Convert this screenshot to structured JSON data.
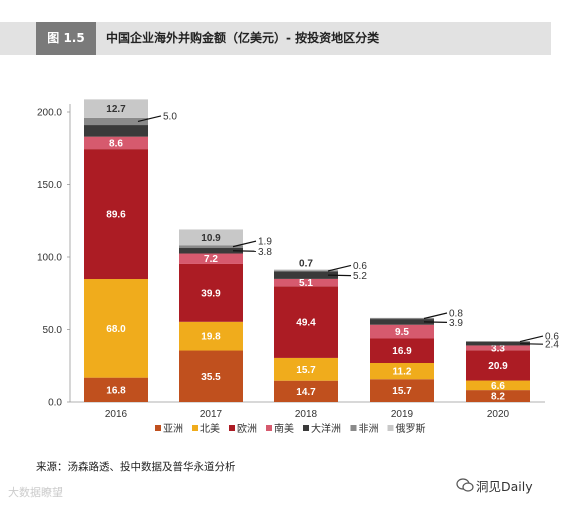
{
  "header": {
    "figure_label": "图 1.5",
    "title": "中国企业海外并购金额（亿美元）- 按投资地区分类"
  },
  "source_note": "来源：汤森路透、投中数据及普华永道分析",
  "watermark_left": "大数据瞭望",
  "watermark_right": "洞见Daily",
  "chart_data": {
    "type": "bar",
    "stacked": true,
    "categories": [
      "2016",
      "2017",
      "2018",
      "2019",
      "2020"
    ],
    "ylim": [
      0,
      210
    ],
    "yticks": [
      0,
      50,
      100,
      150,
      200
    ],
    "ytick_labels": [
      "0.0",
      "50.0",
      "100.0",
      "150.0",
      "200.0"
    ],
    "grid": false,
    "legend_position": "bottom",
    "series": [
      {
        "name": "亚洲",
        "color": "#c0501e",
        "values": [
          16.8,
          35.5,
          14.7,
          15.7,
          8.2
        ]
      },
      {
        "name": "北美",
        "color": "#f0ac1c",
        "values": [
          68.0,
          19.8,
          15.7,
          11.2,
          6.6
        ]
      },
      {
        "name": "欧洲",
        "color": "#ac1c24",
        "values": [
          89.6,
          39.9,
          49.4,
          16.9,
          20.9
        ]
      },
      {
        "name": "南美",
        "color": "#d65a6e",
        "values": [
          8.6,
          7.2,
          5.1,
          9.5,
          3.3
        ]
      },
      {
        "name": "大洋洲",
        "color": "#3a3a3a",
        "values": [
          8.0,
          3.8,
          5.2,
          3.9,
          2.4
        ]
      },
      {
        "name": "非洲",
        "color": "#8a8a8a",
        "values": [
          5.0,
          1.9,
          0.6,
          0.8,
          0.6
        ]
      },
      {
        "name": "俄罗斯",
        "color": "#c8c8c8",
        "values": [
          12.7,
          10.9,
          0.7,
          0,
          0
        ]
      }
    ],
    "inside_labels": [
      [
        "16.8",
        "68.0",
        "89.6",
        "8.6",
        "",
        "",
        "12.7"
      ],
      [
        "35.5",
        "19.8",
        "39.9",
        "7.2",
        "",
        "",
        "10.9"
      ],
      [
        "14.7",
        "15.7",
        "49.4",
        "5.1",
        "",
        "",
        "0.7"
      ],
      [
        "15.7",
        "11.2",
        "16.9",
        "9.5",
        "",
        "",
        ""
      ],
      [
        "8.2",
        "6.6",
        "20.9",
        "3.3",
        "",
        "",
        ""
      ]
    ],
    "callouts": [
      [
        {
          "series": 5,
          "text": "5.0"
        }
      ],
      [
        {
          "series": 5,
          "text": "1.9"
        },
        {
          "series": 4,
          "text": "3.8"
        }
      ],
      [
        {
          "series": 5,
          "text": "0.6"
        },
        {
          "series": 4,
          "text": "5.2"
        }
      ],
      [
        {
          "series": 5,
          "text": "0.8"
        },
        {
          "series": 4,
          "text": "3.9"
        }
      ],
      [
        {
          "series": 5,
          "text": "0.6"
        },
        {
          "series": 4,
          "text": "2.4"
        }
      ]
    ]
  }
}
